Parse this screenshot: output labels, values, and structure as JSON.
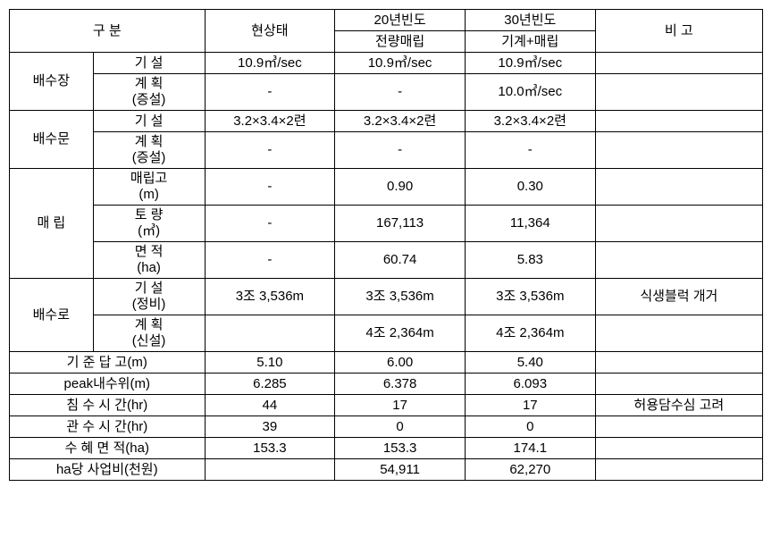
{
  "header": {
    "category": "구 분",
    "current": "현상태",
    "freq20": "20년빈도",
    "freq20sub": "전량매립",
    "freq30": "30년빈도",
    "freq30sub": "기계+매립",
    "note": "비 고"
  },
  "baesujang": {
    "label": "배수장",
    "gisul": "기 설",
    "gisul_current": "10.9㎥/sec",
    "gisul_20": "10.9㎥/sec",
    "gisul_30": "10.9㎥/sec",
    "gyehoek1": "계 획",
    "gyehoek2": "(증설)",
    "gyehoek_current": "-",
    "gyehoek_20": "-",
    "gyehoek_30": "10.0㎥/sec"
  },
  "baesumun": {
    "label": "배수문",
    "gisul": "기 설",
    "gisul_current": "3.2×3.4×2련",
    "gisul_20": "3.2×3.4×2련",
    "gisul_30": "3.2×3.4×2련",
    "gyehoek1": "계 획",
    "gyehoek2": "(증설)",
    "gyehoek_current": "-",
    "gyehoek_20": "-",
    "gyehoek_30": "-"
  },
  "maerip": {
    "label": "매  립",
    "maeripgo1": "매립고",
    "maeripgo2": "(m)",
    "maeripgo_current": "-",
    "maeripgo_20": "0.90",
    "maeripgo_30": "0.30",
    "toryang1": "토 량",
    "toryang2": "(㎥)",
    "toryang_current": "-",
    "toryang_20": "167,113",
    "toryang_30": "11,364",
    "myeonjeok1": "면 적",
    "myeonjeok2": "(ha)",
    "myeonjeok_current": "-",
    "myeonjeok_20": "60.74",
    "myeonjeok_30": "5.83"
  },
  "baesuro": {
    "label": "배수로",
    "gisul1": "기 설",
    "gisul2": "(정비)",
    "gisul_current": "3조 3,536m",
    "gisul_20": "3조 3,536m",
    "gisul_30": "3조 3,536m",
    "gisul_note": "식생블럭 개거",
    "gyehoek1": "계 획",
    "gyehoek2": "(신설)",
    "gyehoek_20": "4조 2,364m",
    "gyehoek_30": "4조 2,364m"
  },
  "rows": {
    "gijun_label": "기 준 답 고(m)",
    "gijun_current": "5.10",
    "gijun_20": "6.00",
    "gijun_30": "5.40",
    "peak_label": "peak내수위(m)",
    "peak_current": "6.285",
    "peak_20": "6.378",
    "peak_30": "6.093",
    "chimsu_label": "침 수 시 간(hr)",
    "chimsu_current": "44",
    "chimsu_20": "17",
    "chimsu_30": "17",
    "chimsu_note": "허용담수심 고려",
    "gwansu_label": "관 수 시 간(hr)",
    "gwansu_current": "39",
    "gwansu_20": "0",
    "gwansu_30": "0",
    "suhye_label": "수 혜 면 적(ha)",
    "suhye_current": "153.3",
    "suhye_20": "153.3",
    "suhye_30": "174.1",
    "ha_label": "ha당 사업비(천원)",
    "ha_20": "54,911",
    "ha_30": "62,270"
  }
}
